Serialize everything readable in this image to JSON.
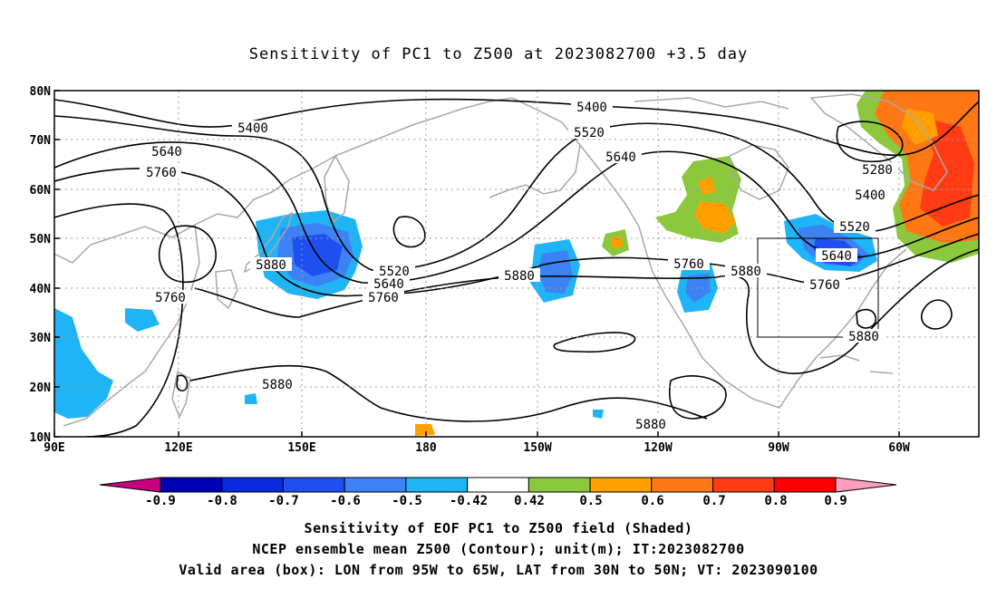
{
  "title": "Sensitivity of PC1 to Z500 at 2023082700 +3.5 day",
  "axes": {
    "lat_labels": [
      "80N",
      "70N",
      "60N",
      "50N",
      "40N",
      "30N",
      "20N",
      "10N"
    ],
    "lon_labels": [
      "90E",
      "120E",
      "150E",
      "180",
      "150W",
      "120W",
      "90W",
      "60W"
    ]
  },
  "contour_labels": [
    "5400",
    "5400",
    "5520",
    "5640",
    "5760",
    "5640",
    "5760",
    "5880",
    "5520",
    "5640",
    "5760",
    "5880",
    "5760",
    "5880",
    "5280",
    "5400",
    "5520",
    "5640",
    "5760",
    "5880",
    "5880",
    "5880"
  ],
  "colorbar": {
    "ticks": [
      "-0.9",
      "-0.8",
      "-0.7",
      "-0.6",
      "-0.5",
      "-0.42",
      "0.42",
      "0.5",
      "0.6",
      "0.7",
      "0.8",
      "0.9"
    ],
    "colors": [
      "#c8007f",
      "#0000b4",
      "#0a28dc",
      "#1e50f0",
      "#3c82f5",
      "#1fb4f5",
      "#ffffff",
      "#8cc83c",
      "#ffa000",
      "#ff7814",
      "#ff3c14",
      "#ff0000",
      "#ff9ebe"
    ]
  },
  "captions": [
    "Sensitivity of EOF PC1 to Z500 field (Shaded)",
    "NCEP ensemble mean Z500 (Contour); unit(m); IT:2023082700",
    "Valid area (box): LON from 95W to 65W, LAT from 30N to 50N; VT: 2023090100"
  ],
  "valid_box": {
    "lon_min": "95W",
    "lon_max": "65W",
    "lat_min": "30N",
    "lat_max": "50N"
  }
}
